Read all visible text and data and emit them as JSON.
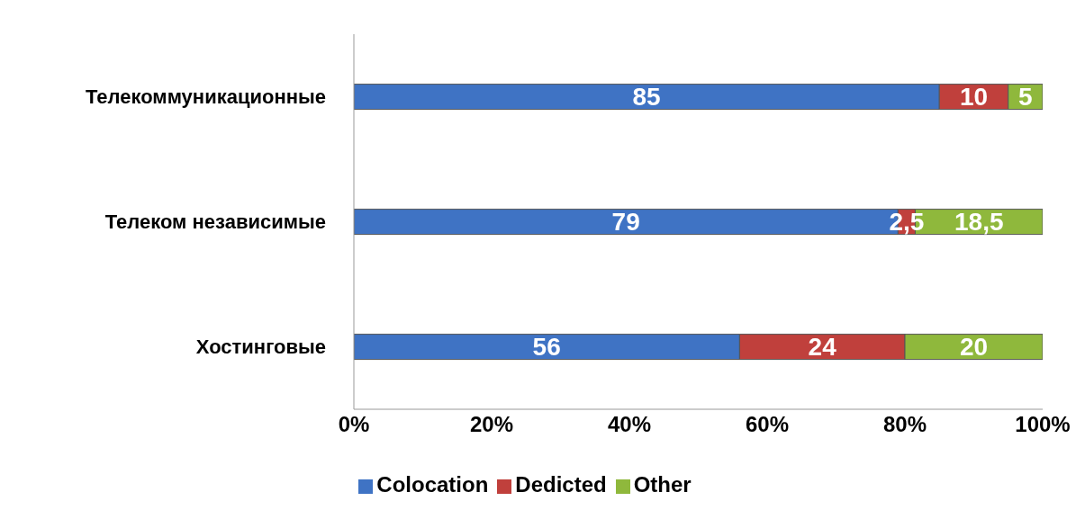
{
  "chart_data": {
    "type": "bar",
    "orientation": "horizontal",
    "stacked": true,
    "categories": [
      "Телекоммуникационные",
      "Телеком независимые",
      "Хостинговые"
    ],
    "series": [
      {
        "name": "Colocation",
        "color": "#3f73c4",
        "values": [
          85,
          79,
          56
        ],
        "value_labels": [
          "85",
          "79",
          "56"
        ]
      },
      {
        "name": "Dedicted",
        "color": "#c0403c",
        "values": [
          10,
          2.5,
          24
        ],
        "value_labels": [
          "10",
          "2,5",
          "24"
        ]
      },
      {
        "name": "Other",
        "color": "#8fb83c",
        "values": [
          5,
          18.5,
          20
        ],
        "value_labels": [
          "5",
          "18,5",
          "20"
        ]
      }
    ],
    "xlim": [
      0,
      100
    ],
    "xticks": [
      {
        "value": 0,
        "label": "0%"
      },
      {
        "value": 20,
        "label": "20%"
      },
      {
        "value": 40,
        "label": "40%"
      },
      {
        "value": 60,
        "label": "60%"
      },
      {
        "value": 80,
        "label": "80%"
      },
      {
        "value": 100,
        "label": "100%"
      }
    ],
    "grid": false,
    "legend": "bottom"
  }
}
